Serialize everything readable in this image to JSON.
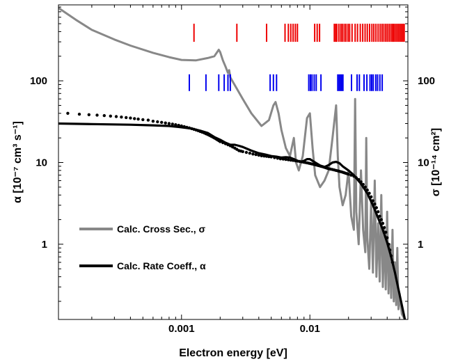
{
  "chart_data": {
    "type": "line",
    "xlabel": "Electron energy [eV]",
    "ylabel_left": "α [10⁻⁷ cm³ s⁻¹]",
    "ylabel_right": "σ [10⁻¹⁴ cm²]",
    "x_scale": "log",
    "y_scale": "log",
    "xlim": [
      0.00011,
      0.058
    ],
    "ylim": [
      0.12,
      850
    ],
    "x_ticks": [
      {
        "value": 0.001,
        "label": "0.001"
      },
      {
        "value": 0.01,
        "label": "0.01"
      }
    ],
    "y_ticks": [
      {
        "value": 1,
        "label": "1"
      },
      {
        "value": 10,
        "label": "10"
      },
      {
        "value": 100,
        "label": "100"
      }
    ],
    "grid": false,
    "legend_position": "lower-left",
    "legend": [
      {
        "label": "Calc. Cross Sec., σ",
        "color": "#888888",
        "series": "cross_section"
      },
      {
        "label": "Calc. Rate Coeff., α",
        "color": "#000000",
        "series": "rate_coefficient"
      }
    ],
    "series": [
      {
        "id": "cross_section",
        "name": "Calc. Cross Sec., σ",
        "style": "line",
        "color": "#888888",
        "points": [
          [
            0.00011,
            780
          ],
          [
            0.00015,
            560
          ],
          [
            0.0002,
            420
          ],
          [
            0.0003,
            320
          ],
          [
            0.0004,
            270
          ],
          [
            0.0006,
            220
          ],
          [
            0.0008,
            195
          ],
          [
            0.001,
            180
          ],
          [
            0.0013,
            178
          ],
          [
            0.0016,
            190
          ],
          [
            0.0018,
            200
          ],
          [
            0.00195,
            240
          ],
          [
            0.002,
            225
          ],
          [
            0.0021,
            178
          ],
          [
            0.0022,
            150
          ],
          [
            0.0023,
            125
          ],
          [
            0.00235,
            135
          ],
          [
            0.0024,
            110
          ],
          [
            0.0027,
            80
          ],
          [
            0.003,
            60
          ],
          [
            0.0035,
            40
          ],
          [
            0.0042,
            28
          ],
          [
            0.0048,
            33
          ],
          [
            0.0052,
            50
          ],
          [
            0.0054,
            55
          ],
          [
            0.0057,
            40
          ],
          [
            0.006,
            25
          ],
          [
            0.0065,
            15
          ],
          [
            0.007,
            12
          ],
          [
            0.0075,
            20
          ],
          [
            0.0078,
            10
          ],
          [
            0.0082,
            8
          ],
          [
            0.0088,
            12
          ],
          [
            0.0095,
            35
          ],
          [
            0.01,
            40
          ],
          [
            0.0105,
            15
          ],
          [
            0.011,
            7
          ],
          [
            0.012,
            5
          ],
          [
            0.013,
            6
          ],
          [
            0.014,
            8
          ],
          [
            0.015,
            20
          ],
          [
            0.016,
            50
          ],
          [
            0.0165,
            12
          ],
          [
            0.017,
            5
          ],
          [
            0.018,
            3
          ],
          [
            0.019,
            4
          ],
          [
            0.02,
            8
          ],
          [
            0.021,
            2.2
          ],
          [
            0.022,
            1.5
          ],
          [
            0.0225,
            60
          ],
          [
            0.023,
            2.5
          ],
          [
            0.024,
            1
          ],
          [
            0.025,
            8
          ],
          [
            0.026,
            1.5
          ],
          [
            0.027,
            0.8
          ],
          [
            0.0275,
            20
          ],
          [
            0.028,
            1.2
          ],
          [
            0.029,
            0.5
          ],
          [
            0.03,
            3.5
          ],
          [
            0.031,
            0.45
          ],
          [
            0.032,
            6
          ],
          [
            0.033,
            0.4
          ],
          [
            0.034,
            1.8
          ],
          [
            0.035,
            0.35
          ],
          [
            0.036,
            4
          ],
          [
            0.037,
            0.3
          ],
          [
            0.038,
            1.5
          ],
          [
            0.039,
            0.28
          ],
          [
            0.04,
            2.5
          ],
          [
            0.041,
            0.25
          ],
          [
            0.042,
            1
          ],
          [
            0.043,
            0.22
          ],
          [
            0.044,
            1.5
          ],
          [
            0.045,
            0.2
          ],
          [
            0.046,
            0.6
          ],
          [
            0.047,
            0.18
          ],
          [
            0.048,
            0.9
          ],
          [
            0.049,
            0.16
          ],
          [
            0.05,
            0.25
          ],
          [
            0.052,
            0.14
          ],
          [
            0.055,
            0.12
          ]
        ]
      },
      {
        "id": "rate_coefficient",
        "name": "Calc. Rate Coeff., α",
        "style": "line",
        "color": "#000000",
        "points": [
          [
            0.00011,
            30
          ],
          [
            0.0002,
            29.5
          ],
          [
            0.0004,
            29
          ],
          [
            0.0006,
            28.5
          ],
          [
            0.0008,
            28
          ],
          [
            0.001,
            27
          ],
          [
            0.0012,
            26
          ],
          [
            0.0014,
            24.5
          ],
          [
            0.0016,
            23
          ],
          [
            0.0018,
            20.5
          ],
          [
            0.002,
            19
          ],
          [
            0.0022,
            17.5
          ],
          [
            0.0024,
            16.5
          ],
          [
            0.0026,
            16.5
          ],
          [
            0.0028,
            16
          ],
          [
            0.003,
            15.5
          ],
          [
            0.0035,
            14
          ],
          [
            0.004,
            13
          ],
          [
            0.0045,
            12.5
          ],
          [
            0.005,
            12
          ],
          [
            0.0055,
            11.8
          ],
          [
            0.006,
            11.5
          ],
          [
            0.0065,
            11.6
          ],
          [
            0.007,
            11.5
          ],
          [
            0.0075,
            11
          ],
          [
            0.008,
            10.5
          ],
          [
            0.0085,
            10.2
          ],
          [
            0.009,
            10.5
          ],
          [
            0.0095,
            11
          ],
          [
            0.01,
            11
          ],
          [
            0.011,
            10
          ],
          [
            0.012,
            9.2
          ],
          [
            0.013,
            8.8
          ],
          [
            0.014,
            9.3
          ],
          [
            0.015,
            10
          ],
          [
            0.016,
            10.2
          ],
          [
            0.017,
            9.8
          ],
          [
            0.018,
            9
          ],
          [
            0.02,
            8
          ],
          [
            0.022,
            7
          ],
          [
            0.025,
            5.5
          ],
          [
            0.028,
            4.2
          ],
          [
            0.031,
            3
          ],
          [
            0.034,
            2.1
          ],
          [
            0.037,
            1.5
          ],
          [
            0.04,
            1.05
          ],
          [
            0.043,
            0.7
          ],
          [
            0.046,
            0.45
          ],
          [
            0.049,
            0.28
          ],
          [
            0.052,
            0.18
          ],
          [
            0.055,
            0.12
          ]
        ]
      },
      {
        "id": "measured",
        "name": "",
        "style": "scatter",
        "color": "#000000",
        "points": [
          [
            0.00013,
            40
          ],
          [
            0.00016,
            39
          ],
          [
            0.00019,
            38.5
          ],
          [
            0.00022,
            38
          ],
          [
            0.00025,
            37.5
          ],
          [
            0.00028,
            37
          ],
          [
            0.00031,
            36.5
          ],
          [
            0.00034,
            36
          ],
          [
            0.00037,
            35.5
          ],
          [
            0.0004,
            35
          ],
          [
            0.00043,
            34.5
          ],
          [
            0.00046,
            34
          ],
          [
            0.0005,
            33.5
          ],
          [
            0.00055,
            33
          ],
          [
            0.0006,
            32
          ],
          [
            0.00065,
            31.5
          ],
          [
            0.0007,
            31
          ],
          [
            0.00075,
            30.5
          ],
          [
            0.0008,
            30
          ],
          [
            0.00085,
            29.5
          ],
          [
            0.0009,
            29
          ],
          [
            0.00095,
            28.5
          ],
          [
            0.001,
            28
          ],
          [
            0.00105,
            27.5
          ],
          [
            0.0011,
            27
          ],
          [
            0.00115,
            26.5
          ],
          [
            0.0012,
            26
          ],
          [
            0.00125,
            25.5
          ],
          [
            0.0013,
            25
          ],
          [
            0.00135,
            24.5
          ],
          [
            0.0014,
            24
          ],
          [
            0.00145,
            23.5
          ],
          [
            0.0015,
            23
          ],
          [
            0.00155,
            22.5
          ],
          [
            0.0016,
            22
          ],
          [
            0.00165,
            21.5
          ],
          [
            0.0017,
            21
          ],
          [
            0.00175,
            20.5
          ],
          [
            0.0018,
            20
          ],
          [
            0.00185,
            19.5
          ],
          [
            0.0019,
            19
          ],
          [
            0.00195,
            18.5
          ],
          [
            0.002,
            18
          ],
          [
            0.0021,
            17.5
          ],
          [
            0.0022,
            17
          ],
          [
            0.0023,
            16.5
          ],
          [
            0.0024,
            16
          ],
          [
            0.0025,
            15.5
          ],
          [
            0.0026,
            15
          ],
          [
            0.0027,
            14.5
          ],
          [
            0.0028,
            14
          ],
          [
            0.0029,
            13.8
          ],
          [
            0.003,
            13.6
          ],
          [
            0.0032,
            13.3
          ],
          [
            0.0034,
            13
          ],
          [
            0.0036,
            12.7
          ],
          [
            0.0038,
            12.5
          ],
          [
            0.004,
            12.3
          ],
          [
            0.0042,
            12.1
          ],
          [
            0.0044,
            12
          ],
          [
            0.0046,
            11.9
          ],
          [
            0.0048,
            11.8
          ],
          [
            0.005,
            11.7
          ],
          [
            0.0053,
            11.5
          ],
          [
            0.0056,
            11.3
          ],
          [
            0.0059,
            11.1
          ],
          [
            0.0062,
            11
          ],
          [
            0.0065,
            10.9
          ],
          [
            0.0068,
            10.8
          ],
          [
            0.0071,
            10.7
          ],
          [
            0.0074,
            10.6
          ],
          [
            0.0077,
            10.5
          ],
          [
            0.008,
            10.4
          ],
          [
            0.0083,
            10.3
          ],
          [
            0.0086,
            10.2
          ],
          [
            0.0089,
            10.1
          ],
          [
            0.0092,
            10
          ],
          [
            0.0095,
            9.9
          ],
          [
            0.0098,
            9.8
          ],
          [
            0.0101,
            9.7
          ],
          [
            0.0104,
            9.6
          ],
          [
            0.0107,
            9.5
          ],
          [
            0.011,
            9.4
          ],
          [
            0.0113,
            9.3
          ],
          [
            0.0116,
            9.2
          ],
          [
            0.0119,
            9.1
          ],
          [
            0.0122,
            9
          ],
          [
            0.0125,
            8.9
          ],
          [
            0.0128,
            8.8
          ],
          [
            0.0131,
            8.7
          ],
          [
            0.0134,
            8.6
          ],
          [
            0.0137,
            8.5
          ],
          [
            0.014,
            8.4
          ],
          [
            0.0145,
            8.3
          ],
          [
            0.015,
            8.2
          ],
          [
            0.0155,
            8.1
          ],
          [
            0.016,
            8
          ],
          [
            0.0165,
            7.9
          ],
          [
            0.017,
            7.8
          ],
          [
            0.0175,
            7.7
          ],
          [
            0.018,
            7.6
          ],
          [
            0.0185,
            7.5
          ],
          [
            0.019,
            7.4
          ],
          [
            0.0195,
            7.3
          ],
          [
            0.02,
            7.2
          ],
          [
            0.021,
            7
          ],
          [
            0.022,
            6.8
          ],
          [
            0.023,
            6.5
          ],
          [
            0.024,
            6.2
          ],
          [
            0.025,
            5.8
          ],
          [
            0.026,
            5.4
          ],
          [
            0.027,
            5
          ],
          [
            0.028,
            4.6
          ],
          [
            0.029,
            4.2
          ],
          [
            0.03,
            3.8
          ],
          [
            0.031,
            3.4
          ],
          [
            0.032,
            3.1
          ],
          [
            0.033,
            2.8
          ],
          [
            0.034,
            2.5
          ],
          [
            0.035,
            2.2
          ],
          [
            0.036,
            2
          ],
          [
            0.037,
            1.8
          ],
          [
            0.038,
            1.6
          ],
          [
            0.039,
            1.4
          ],
          [
            0.04,
            1.2
          ],
          [
            0.041,
            1
          ],
          [
            0.042,
            0.85
          ],
          [
            0.043,
            0.72
          ],
          [
            0.044,
            0.6
          ]
        ]
      }
    ],
    "resonance_markers": [
      {
        "id": "red",
        "color": "#ee0000",
        "y_range": [
          300,
          500
        ],
        "x": [
          0.00125,
          0.0027,
          0.0046,
          0.0064,
          0.0068,
          0.0071,
          0.0074,
          0.0077,
          0.008,
          0.0109,
          0.0114,
          0.0119,
          0.0155,
          0.0159,
          0.0162,
          0.0168,
          0.0174,
          0.0179,
          0.0185,
          0.0191,
          0.0198,
          0.0204,
          0.0213,
          0.0225,
          0.0235,
          0.0247,
          0.0258,
          0.0269,
          0.028,
          0.0292,
          0.0304,
          0.0315,
          0.0327,
          0.034,
          0.0353,
          0.0365,
          0.0377,
          0.039,
          0.0402,
          0.0415,
          0.0428,
          0.044,
          0.0452,
          0.0465,
          0.0478,
          0.0491,
          0.0504,
          0.0517,
          0.053,
          0.0543
        ]
      },
      {
        "id": "blue",
        "color": "#0000ee",
        "y_range": [
          75,
          120
        ],
        "x": [
          0.00115,
          0.00155,
          0.00195,
          0.00215,
          0.0023,
          0.0024,
          0.0049,
          0.0052,
          0.0055,
          0.0098,
          0.0101,
          0.0104,
          0.0108,
          0.0112,
          0.0122,
          0.0165,
          0.0169,
          0.0173,
          0.0177,
          0.0181,
          0.0211,
          0.0233,
          0.0243,
          0.0264,
          0.0278,
          0.0294,
          0.0303,
          0.0312,
          0.0326,
          0.0337,
          0.0351,
          0.0366
        ]
      }
    ]
  }
}
